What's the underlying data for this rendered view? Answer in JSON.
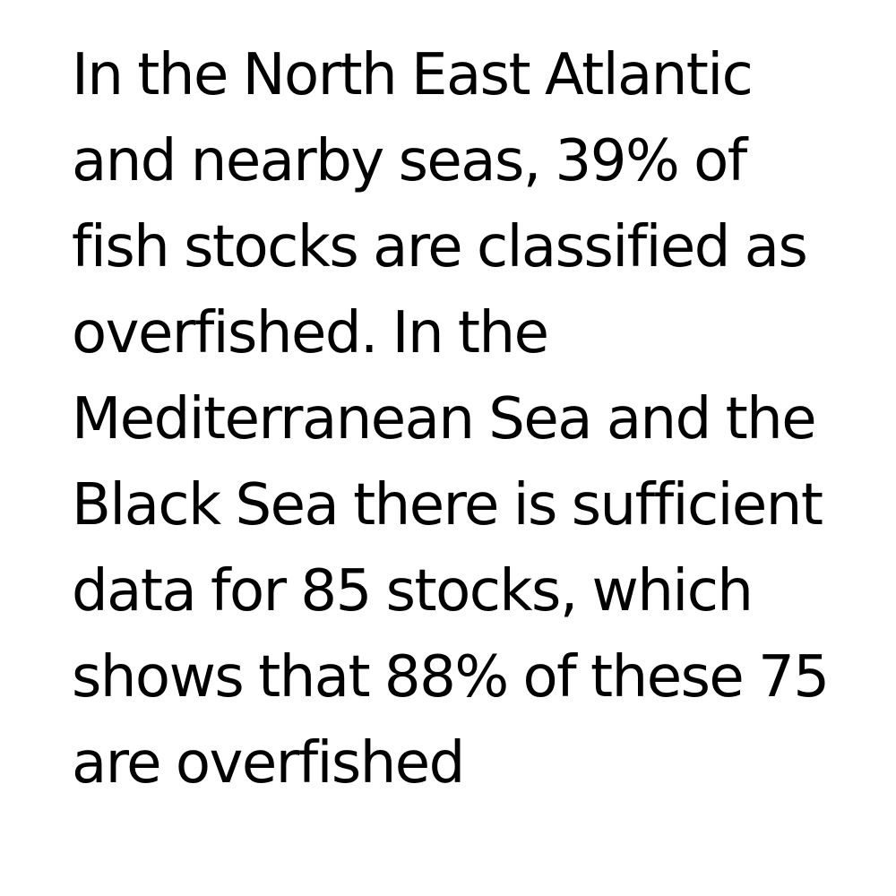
{
  "text": {
    "lines": [
      "In the North East Atlantic",
      "and nearby seas, 39% of",
      "fish stocks are classified as",
      "overfished. In the",
      "Mediterranean Sea and the",
      "Black Sea there is sufficient",
      "data for 85 stocks, which",
      "shows that 88% of these 75",
      "are overfished"
    ]
  },
  "colors": {
    "background": "#ffffff",
    "text": "#000000"
  }
}
